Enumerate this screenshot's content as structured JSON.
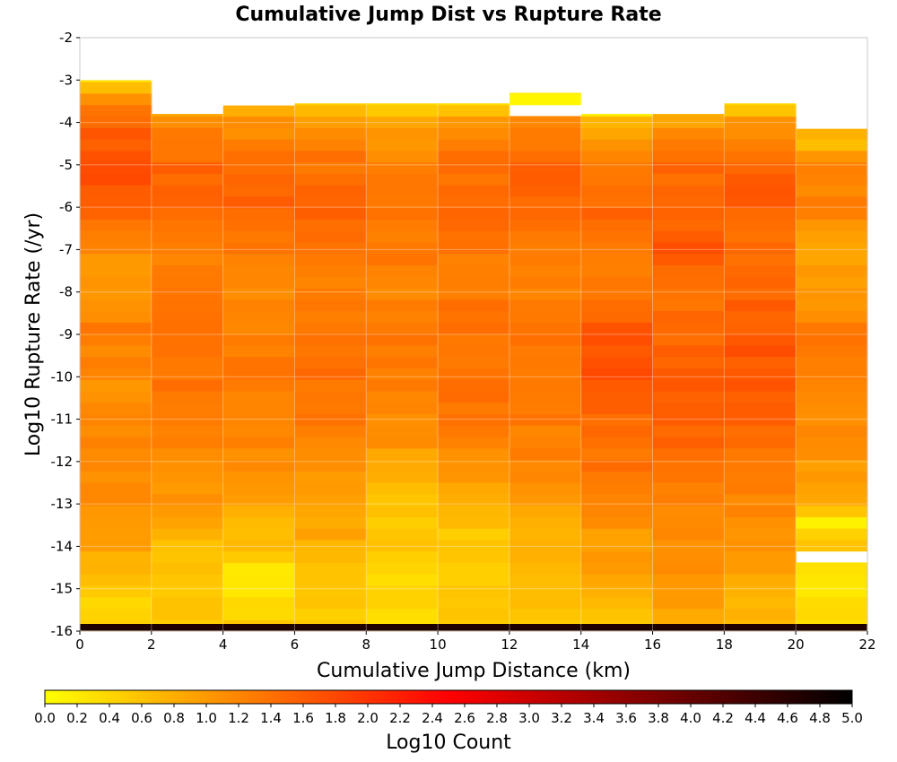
{
  "chart_data": {
    "type": "heatmap",
    "title": "Cumulative Jump Dist vs Rupture Rate",
    "xlabel": "Cumulative Jump Distance (km)",
    "ylabel": "Log10 Rupture Rate (/yr)",
    "xlim": [
      0,
      22
    ],
    "ylim": [
      -16,
      -2
    ],
    "x_ticks": [
      "0",
      "2",
      "4",
      "6",
      "8",
      "10",
      "12",
      "14",
      "16",
      "18",
      "20",
      "22"
    ],
    "y_ticks": [
      "-2",
      "-3",
      "-4",
      "-5",
      "-6",
      "-7",
      "-8",
      "-9",
      "-10",
      "-11",
      "-12",
      "-13",
      "-14",
      "-15",
      "-16"
    ],
    "x_bin_edges": [
      0,
      2,
      4,
      6,
      8,
      10,
      12,
      14,
      16,
      18,
      20,
      22
    ],
    "y_bin_size": 0.27,
    "y_bin_start": -16,
    "grid": true,
    "colorbar": {
      "label": "Log10 Count",
      "min": 0.0,
      "max": 5.0,
      "ticks": [
        "0.0",
        "0.2",
        "0.4",
        "0.6",
        "0.8",
        "1.0",
        "1.2",
        "1.4",
        "1.6",
        "1.8",
        "2.0",
        "2.2",
        "2.4",
        "2.6",
        "2.8",
        "3.0",
        "3.2",
        "3.4",
        "3.6",
        "3.8",
        "4.0",
        "4.2",
        "4.4",
        "4.6",
        "4.8",
        "5.0"
      ],
      "colors": [
        "#ffff00",
        "#ff8000",
        "#ff0000",
        "#800000",
        "#000000"
      ]
    },
    "columns": [
      {
        "x_range": [
          0,
          2
        ],
        "y_top": -3.0,
        "profile_y": [
          -16,
          -15.5,
          -15,
          -14,
          -13,
          -12,
          -11,
          -10,
          -9,
          -8,
          -7,
          -6,
          -5,
          -4,
          -3.3,
          -3.0
        ],
        "profile_v": [
          0.5,
          0.4,
          0.6,
          0.9,
          1.1,
          1.2,
          1.2,
          1.1,
          1.3,
          1.0,
          1.1,
          1.6,
          1.8,
          1.5,
          1.0,
          0.3
        ]
      },
      {
        "x_range": [
          2,
          4
        ],
        "y_top": -3.8,
        "profile_y": [
          -16,
          -15,
          -14,
          -13,
          -12,
          -11,
          -10,
          -9,
          -8,
          -7,
          -6,
          -5,
          -4.2,
          -3.8
        ],
        "profile_v": [
          0.5,
          0.6,
          0.7,
          1.0,
          1.1,
          1.3,
          1.4,
          1.3,
          1.3,
          1.3,
          1.5,
          1.5,
          1.3,
          1.0
        ]
      },
      {
        "x_range": [
          4,
          6
        ],
        "y_top": -3.6,
        "profile_y": [
          -16,
          -15,
          -14.5,
          -14,
          -13,
          -12,
          -11,
          -10,
          -9,
          -8,
          -7,
          -6,
          -5,
          -4,
          -3.6
        ],
        "profile_v": [
          0.5,
          0.2,
          0.3,
          0.6,
          0.9,
          1.1,
          1.3,
          1.3,
          1.3,
          1.2,
          1.3,
          1.6,
          1.5,
          1.1,
          0.7
        ]
      },
      {
        "x_range": [
          6,
          8
        ],
        "y_top": -3.55,
        "profile_y": [
          -16,
          -15,
          -14,
          -13,
          -12,
          -11,
          -10,
          -9,
          -8,
          -7,
          -6,
          -5,
          -4,
          -3.55
        ],
        "profile_v": [
          0.5,
          0.5,
          0.8,
          1.0,
          1.1,
          1.3,
          1.4,
          1.3,
          1.2,
          1.3,
          1.5,
          1.4,
          1.0,
          0.4
        ]
      },
      {
        "x_range": [
          8,
          10
        ],
        "y_top": -3.55,
        "profile_y": [
          -16,
          -15,
          -14,
          -13,
          -12,
          -11,
          -10,
          -9,
          -8,
          -7,
          -6,
          -5,
          -4,
          -3.55
        ],
        "profile_v": [
          0.3,
          0.4,
          0.5,
          0.6,
          0.9,
          1.2,
          1.3,
          1.3,
          1.2,
          1.3,
          1.4,
          1.3,
          0.9,
          0.3
        ]
      },
      {
        "x_range": [
          10,
          12
        ],
        "y_top": -3.55,
        "profile_y": [
          -16,
          -15,
          -14,
          -13,
          -12,
          -11,
          -10,
          -9,
          -8,
          -7,
          -6,
          -5,
          -4,
          -3.55
        ],
        "profile_v": [
          0.6,
          0.6,
          0.5,
          0.8,
          1.1,
          1.3,
          1.4,
          1.4,
          1.3,
          1.3,
          1.5,
          1.4,
          1.1,
          0.3
        ]
      },
      {
        "x_range": [
          12,
          14
        ],
        "y_top": -3.3,
        "profile_y": [
          -16,
          -15,
          -14,
          -13,
          -12,
          -11,
          -10,
          -9,
          -8,
          -7,
          -6,
          -5,
          -4,
          -3.8,
          -3.3
        ],
        "profile_v": [
          0.6,
          0.6,
          0.8,
          0.9,
          1.2,
          1.3,
          1.4,
          1.3,
          1.3,
          1.3,
          1.5,
          1.6,
          1.2,
          -1,
          0.2
        ]
      },
      {
        "x_range": [
          14,
          16
        ],
        "y_top": -3.8,
        "profile_y": [
          -16,
          -15,
          -14,
          -13,
          -12,
          -11,
          -10,
          -9,
          -8,
          -7,
          -6,
          -5,
          -4,
          -3.8
        ],
        "profile_v": [
          0.6,
          0.8,
          1.0,
          1.1,
          1.4,
          1.5,
          1.7,
          1.7,
          1.4,
          1.3,
          1.5,
          1.4,
          0.8,
          0.3
        ]
      },
      {
        "x_range": [
          16,
          18
        ],
        "y_top": -3.8,
        "profile_y": [
          -16,
          -15,
          -14,
          -13,
          -12,
          -11,
          -10,
          -9,
          -8,
          -7,
          -6,
          -5,
          -4,
          -3.8
        ],
        "profile_v": [
          0.8,
          1.0,
          1.1,
          1.2,
          1.4,
          1.6,
          1.6,
          1.5,
          1.4,
          1.7,
          1.5,
          1.5,
          1.0,
          0.7
        ]
      },
      {
        "x_range": [
          18,
          20
        ],
        "y_top": -3.55,
        "profile_y": [
          -16,
          -15,
          -14,
          -13,
          -12,
          -11,
          -10,
          -9,
          -8,
          -7,
          -6,
          -5,
          -4,
          -3.55
        ],
        "profile_v": [
          0.6,
          0.8,
          1.0,
          1.2,
          1.3,
          1.6,
          1.7,
          1.6,
          1.5,
          1.4,
          1.6,
          1.6,
          1.0,
          0.5
        ]
      },
      {
        "x_range": [
          20,
          22
        ],
        "y_top": -4.15,
        "profile_y": [
          -16,
          -15,
          -14.6,
          -14.4,
          -14,
          -13.4,
          -13,
          -12,
          -11,
          -10,
          -9,
          -8,
          -7,
          -6,
          -5,
          -4.5,
          -4.15
        ],
        "profile_v": [
          0.4,
          0.3,
          0.3,
          -1,
          0.7,
          0.2,
          0.8,
          1.0,
          1.2,
          1.2,
          1.3,
          1.0,
          0.9,
          1.2,
          1.3,
          0.5,
          0.8
        ]
      }
    ],
    "bottom_row_value": 4.7
  }
}
